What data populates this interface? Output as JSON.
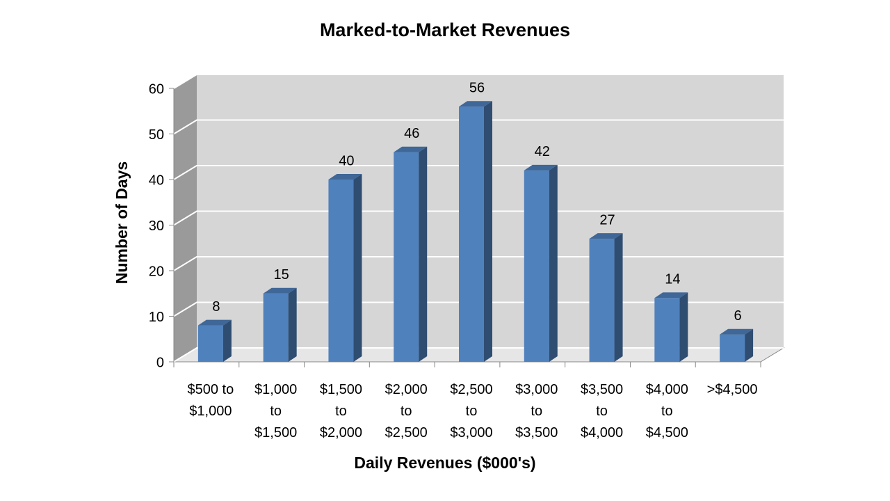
{
  "chart_data": {
    "type": "bar3d",
    "title": "Marked-to-Market Revenues",
    "x_label": "Daily Revenues ($000's)",
    "y_label": "Number of Days",
    "categories": [
      "$500 to $1,000",
      "$1,000 to $1,500",
      "$1,500 to $2,000",
      "$2,000 to $2,500",
      "$2,500 to $3,000",
      "$3,000 to $3,500",
      "$3,500 to $4,000",
      "$4,000 to $4,500",
      ">$4,500"
    ],
    "values": [
      8,
      15,
      40,
      46,
      56,
      42,
      27,
      14,
      6
    ],
    "color": "#4f81bd",
    "ylim": [
      0,
      60
    ],
    "yticks": [
      0,
      10,
      20,
      30,
      40,
      50,
      60
    ],
    "grid": true
  }
}
